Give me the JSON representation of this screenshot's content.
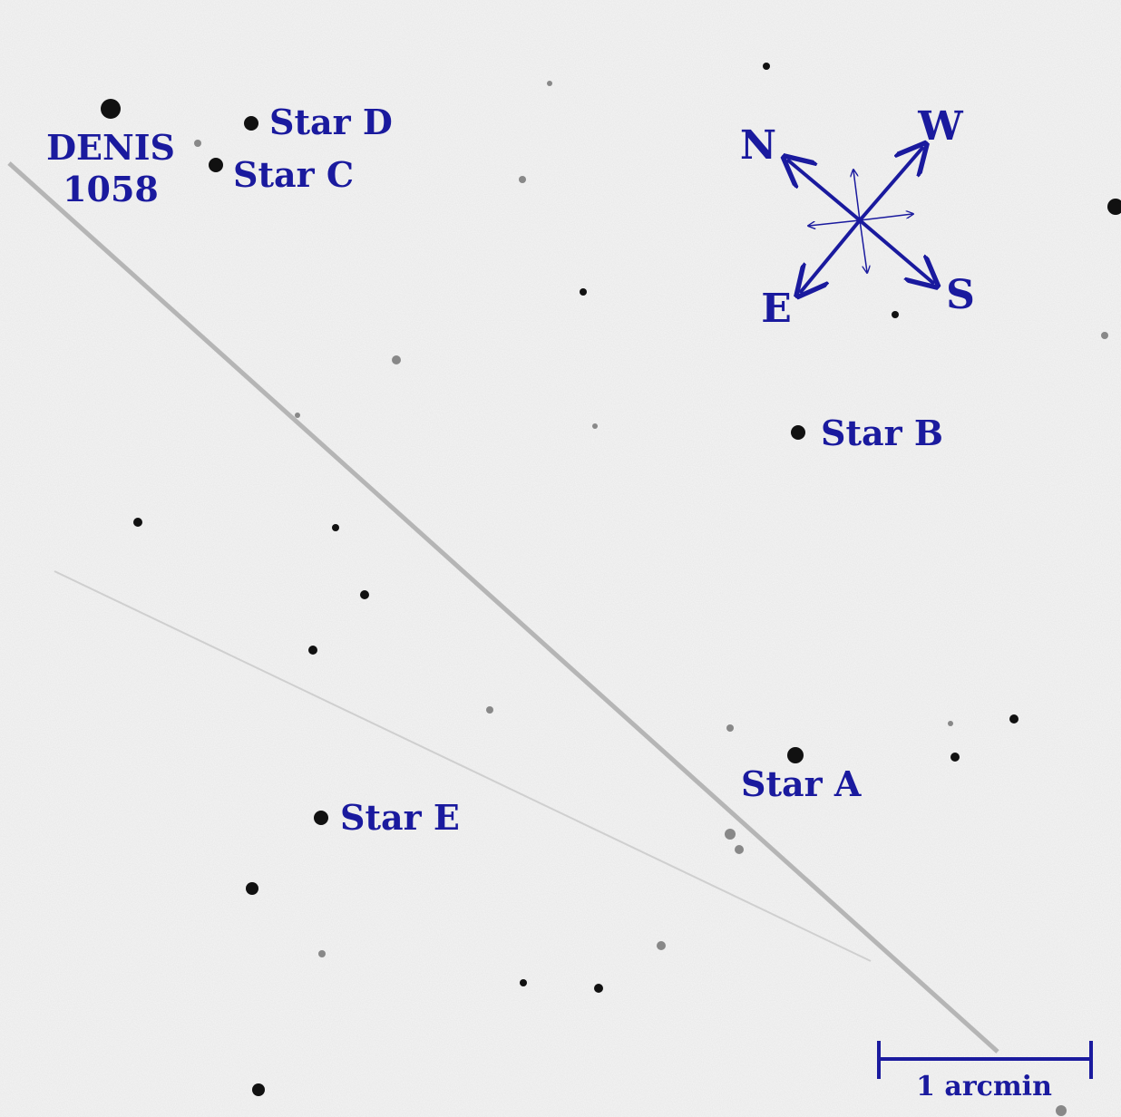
{
  "target": {
    "lines": [
      "DENIS",
      "1058"
    ]
  },
  "labels": [
    "Star D",
    "Star C",
    "Star B",
    "Star A",
    "Star E"
  ],
  "compass": {
    "n": "N",
    "w": "W",
    "e": "E",
    "s": "S"
  },
  "scale_bar": {
    "label": "1 arcmin"
  }
}
